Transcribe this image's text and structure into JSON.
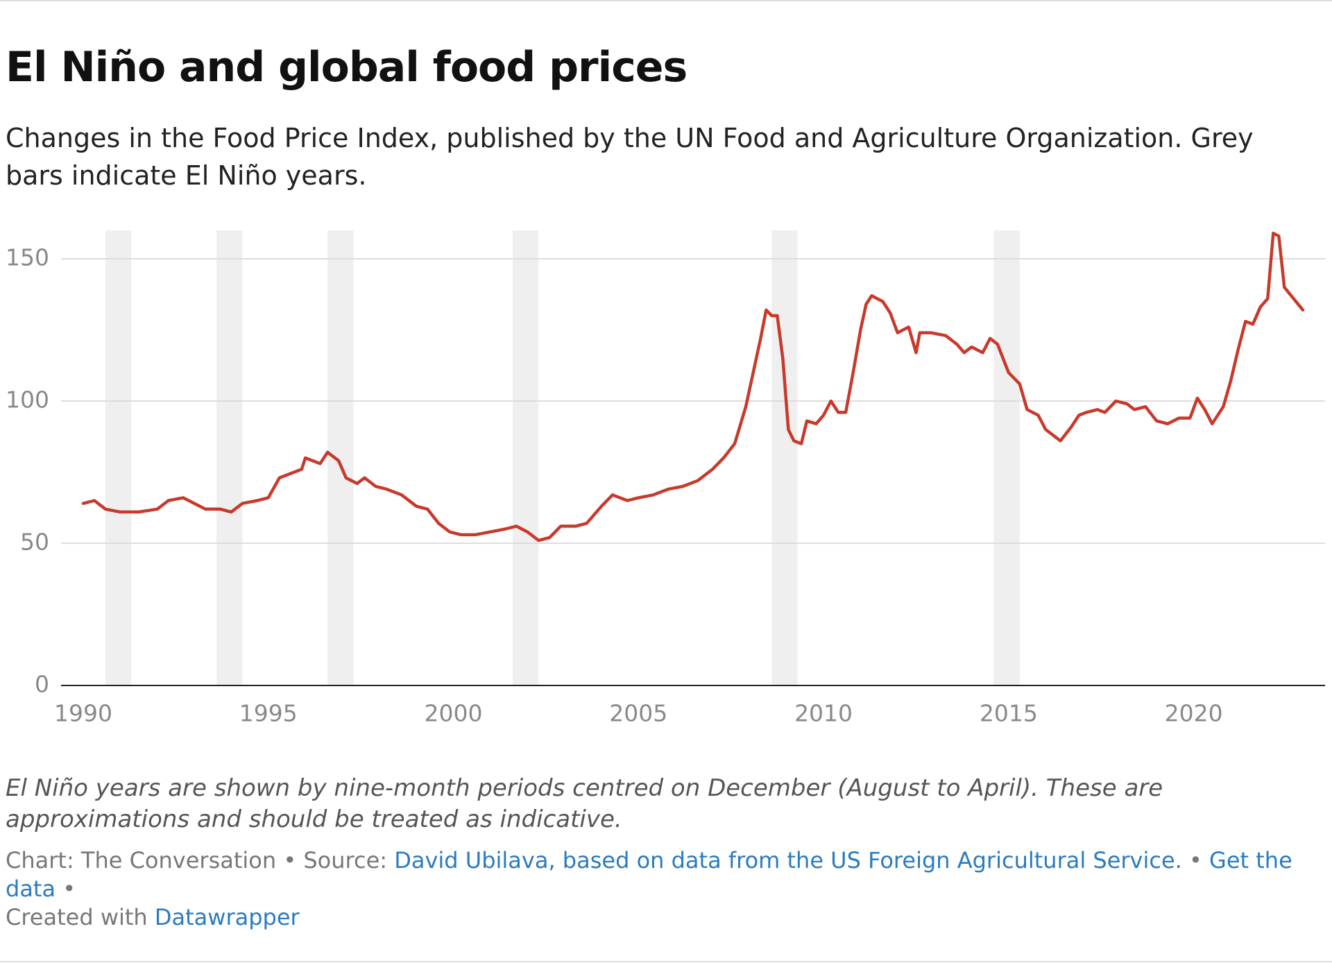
{
  "header": {
    "title": "El Niño and global food prices",
    "subtitle": "Changes in the Food Price Index, published by the UN Food and Agriculture Organization. Grey bars indicate El Niño years."
  },
  "chart_data": {
    "type": "line",
    "x": [
      1990.0,
      1990.3,
      1990.6,
      1991.0,
      1991.5,
      1992.0,
      1992.3,
      1992.7,
      1993.0,
      1993.3,
      1993.7,
      1994.0,
      1994.3,
      1994.7,
      1995.0,
      1995.3,
      1995.7,
      1995.9,
      1996.0,
      1996.2,
      1996.4,
      1996.6,
      1996.9,
      1997.1,
      1997.4,
      1997.6,
      1997.9,
      1998.2,
      1998.6,
      1999.0,
      1999.3,
      1999.6,
      1999.9,
      2000.2,
      2000.6,
      2001.0,
      2001.4,
      2001.7,
      2002.0,
      2002.3,
      2002.6,
      2002.9,
      2003.3,
      2003.6,
      2004.0,
      2004.3,
      2004.7,
      2005.0,
      2005.4,
      2005.8,
      2006.2,
      2006.6,
      2007.0,
      2007.3,
      2007.6,
      2007.9,
      2008.1,
      2008.3,
      2008.45,
      2008.6,
      2008.75,
      2008.9,
      2009.05,
      2009.2,
      2009.4,
      2009.55,
      2009.8,
      2010.0,
      2010.2,
      2010.4,
      2010.6,
      2010.8,
      2011.0,
      2011.15,
      2011.3,
      2011.6,
      2011.8,
      2012.0,
      2012.3,
      2012.5,
      2012.6,
      2012.9,
      2013.3,
      2013.6,
      2013.8,
      2014.0,
      2014.3,
      2014.5,
      2014.7,
      2015.0,
      2015.3,
      2015.5,
      2015.8,
      2016.0,
      2016.2,
      2016.4,
      2016.7,
      2016.9,
      2017.1,
      2017.4,
      2017.6,
      2017.9,
      2018.2,
      2018.4,
      2018.7,
      2019.0,
      2019.3,
      2019.6,
      2019.9,
      2020.1,
      2020.3,
      2020.5,
      2020.8,
      2021.0,
      2021.2,
      2021.4,
      2021.6,
      2021.8,
      2022.0,
      2022.15,
      2022.3,
      2022.45,
      2022.7,
      2022.95
    ],
    "values": [
      64,
      65,
      62,
      61,
      61,
      62,
      65,
      66,
      64,
      62,
      62,
      61,
      64,
      65,
      66,
      73,
      75,
      76,
      80,
      79,
      78,
      82,
      79,
      73,
      71,
      73,
      70,
      69,
      67,
      63,
      62,
      57,
      54,
      53,
      53,
      54,
      55,
      56,
      54,
      51,
      52,
      56,
      56,
      57,
      63,
      67,
      65,
      66,
      67,
      69,
      70,
      72,
      76,
      80,
      85,
      98,
      110,
      122,
      132,
      130,
      130,
      115,
      90,
      86,
      85,
      93,
      92,
      95,
      100,
      96,
      96,
      110,
      125,
      134,
      137,
      135,
      131,
      124,
      126,
      117,
      124,
      124,
      123,
      120,
      117,
      119,
      117,
      122,
      120,
      110,
      106,
      97,
      95,
      90,
      88,
      86,
      91,
      95,
      96,
      97,
      96,
      100,
      99,
      97,
      98,
      93,
      92,
      94,
      94,
      101,
      97,
      92,
      98,
      107,
      118,
      128,
      127,
      133,
      136,
      159,
      158,
      140,
      136,
      132
    ],
    "color": "#c8392b",
    "el_nino_periods": [
      [
        1990.6,
        1991.3
      ],
      [
        1993.6,
        1994.3
      ],
      [
        1996.6,
        1997.3
      ],
      [
        2001.6,
        2002.3
      ],
      [
        2008.6,
        2009.3
      ],
      [
        2014.6,
        2015.3
      ]
    ],
    "shade_color": "#efefef",
    "xlim": [
      1989.4,
      2023.55
    ],
    "xticks": [
      1990,
      1995,
      2000,
      2005,
      2010,
      2015,
      2020
    ],
    "ylim": [
      0,
      160
    ],
    "yticks": [
      0,
      50,
      100,
      150
    ],
    "grid": true
  },
  "footer": {
    "note": "El Niño years are shown by nine-month periods centred on December (August to April). These are approximations and should be treated as indicative.",
    "chart_credit": "Chart: The Conversation",
    "separator": "•",
    "source_label": "Source:",
    "source": "David Ubilava, based on data from the US Foreign Agricultural Service.",
    "get_data": "Get the data",
    "created_with": "Created with",
    "tool": "Datawrapper"
  }
}
